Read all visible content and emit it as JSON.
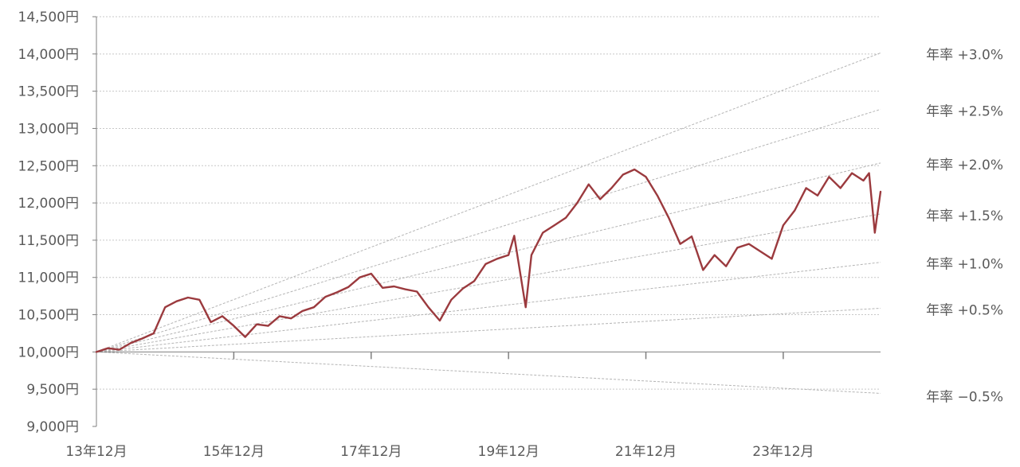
{
  "chart_data": {
    "type": "line",
    "y_tick_labels": [
      "9,000円",
      "9,500円",
      "10,000円",
      "10,500円",
      "11,000円",
      "11,500円",
      "12,000円",
      "12,500円",
      "13,000円",
      "13,500円",
      "14,000円",
      "14,500円"
    ],
    "y_ticks": [
      9000,
      9500,
      10000,
      10500,
      11000,
      11500,
      12000,
      12500,
      13000,
      13500,
      14000,
      14500
    ],
    "x_tick_labels": [
      "13年12月",
      "15年12月",
      "17年12月",
      "19年12月",
      "21年12月",
      "23年12月"
    ],
    "x_ticks": [
      "2013-12",
      "2015-12",
      "2017-12",
      "2019-12",
      "2021-12",
      "2023-12"
    ],
    "ylim": [
      9000,
      14500
    ],
    "xlim": [
      "2013-12",
      "2025-05"
    ],
    "grid": true,
    "colors": {
      "series": "#9b3a3e",
      "reference": "#b4b4b4",
      "grid": "#c8c8c8",
      "axis": "#7f7f7f",
      "text": "#5a5a5a"
    },
    "reference_lines": [
      {
        "label": "年率 +3.0%",
        "rate": 3.0
      },
      {
        "label": "年率 +2.5%",
        "rate": 2.5
      },
      {
        "label": "年率 +2.0%",
        "rate": 2.0
      },
      {
        "label": "年率 +1.5%",
        "rate": 1.5
      },
      {
        "label": "年率 +1.0%",
        "rate": 1.0
      },
      {
        "label": "年率 +0.5%",
        "rate": 0.5
      },
      {
        "label": "年率 −0.5%",
        "rate": -0.5
      }
    ],
    "series": [
      {
        "x": [
          "2013-12",
          "2014-02",
          "2014-04",
          "2014-06",
          "2014-08",
          "2014-10",
          "2014-12",
          "2015-02",
          "2015-04",
          "2015-06",
          "2015-08",
          "2015-10",
          "2015-12",
          "2016-02",
          "2016-04",
          "2016-06",
          "2016-08",
          "2016-10",
          "2016-12",
          "2017-02",
          "2017-04",
          "2017-06",
          "2017-08",
          "2017-10",
          "2017-12",
          "2018-02",
          "2018-04",
          "2018-06",
          "2018-08",
          "2018-10",
          "2018-12",
          "2019-02",
          "2019-04",
          "2019-06",
          "2019-08",
          "2019-10",
          "2019-12",
          "2020-01",
          "2020-03",
          "2020-04",
          "2020-06",
          "2020-08",
          "2020-10",
          "2020-12",
          "2021-02",
          "2021-04",
          "2021-06",
          "2021-08",
          "2021-10",
          "2021-12",
          "2022-02",
          "2022-04",
          "2022-06",
          "2022-08",
          "2022-10",
          "2022-12",
          "2023-02",
          "2023-04",
          "2023-06",
          "2023-08",
          "2023-10",
          "2023-12",
          "2024-02",
          "2024-04",
          "2024-06",
          "2024-08",
          "2024-10",
          "2024-12",
          "2025-02",
          "2025-03",
          "2025-04",
          "2025-05"
        ],
        "values": [
          10000,
          10050,
          10030,
          10120,
          10180,
          10250,
          10600,
          10680,
          10730,
          10700,
          10400,
          10480,
          10350,
          10200,
          10370,
          10350,
          10480,
          10450,
          10550,
          10600,
          10740,
          10800,
          10870,
          11000,
          11050,
          10860,
          10880,
          10840,
          10810,
          10600,
          10420,
          10700,
          10850,
          10950,
          11180,
          11250,
          11300,
          11560,
          10600,
          11300,
          11600,
          11700,
          11800,
          12000,
          12250,
          12050,
          12200,
          12380,
          12450,
          12350,
          12100,
          11800,
          11450,
          11550,
          11100,
          11300,
          11150,
          11400,
          11450,
          11350,
          11250,
          11700,
          11900,
          12200,
          12100,
          12350,
          12200,
          12400,
          12300,
          12400,
          11600,
          12150
        ]
      }
    ]
  }
}
